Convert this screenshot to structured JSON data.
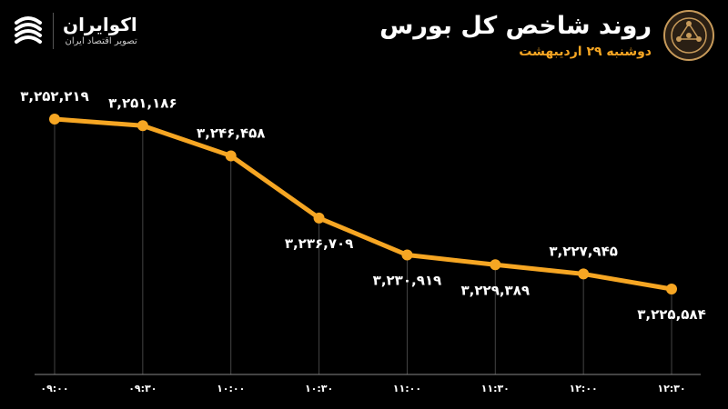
{
  "brand": {
    "name": "اکوایران",
    "tagline": "تصویر اقتصاد ایران"
  },
  "header": {
    "title": "روند شاخص کل بورس",
    "subtitle": "دوشنبه ۲۹ اردیبهشت"
  },
  "colors": {
    "background": "#000000",
    "line": "#f6a623",
    "text": "#ffffff",
    "gridline": "#444444"
  },
  "chart_data": {
    "type": "line",
    "title": "روند شاخص کل بورس",
    "subtitle": "دوشنبه ۲۹ اردیبهشت",
    "x": [
      "09:00",
      "09:30",
      "10:00",
      "10:30",
      "11:00",
      "11:30",
      "12:00",
      "12:30"
    ],
    "x_labels": [
      "۰۹:۰۰",
      "۰۹:۳۰",
      "۱۰:۰۰",
      "۱۰:۳۰",
      "۱۱:۰۰",
      "۱۱:۳۰",
      "۱۲:۰۰",
      "۱۲:۳۰"
    ],
    "values": [
      3252219,
      3251186,
      3246458,
      3236709,
      3230919,
      3229389,
      3227945,
      3225584
    ],
    "value_labels": [
      "۳,۲۵۲,۲۱۹",
      "۳,۲۵۱,۱۸۶",
      "۳,۲۴۶,۴۵۸",
      "۳,۲۳۶,۷۰۹",
      "۳,۲۳۰,۹۱۹",
      "۳,۲۲۹,۳۸۹",
      "۳,۲۲۷,۹۴۵",
      "۳,۲۲۵,۵۸۴"
    ],
    "label_positions": [
      "above",
      "above",
      "above",
      "below",
      "below",
      "below",
      "above",
      "below"
    ],
    "ylim": [
      3224000,
      3253000
    ],
    "grid": "vertical"
  }
}
